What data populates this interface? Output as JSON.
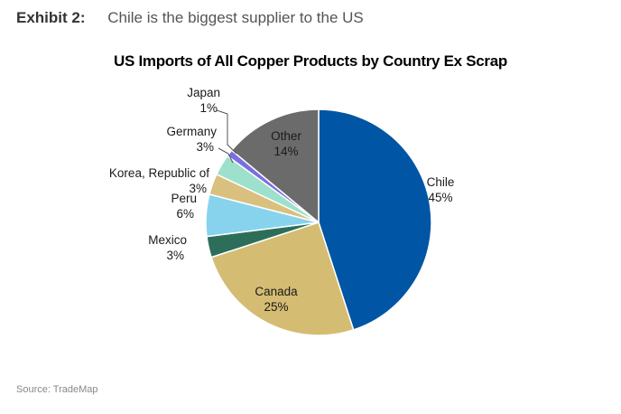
{
  "exhibit": {
    "label": "Exhibit 2:",
    "caption": "Chile is the biggest supplier to the US"
  },
  "source": "Source: TradeMap",
  "chart_data": {
    "type": "pie",
    "title": "US Imports of All Copper Products by Country Ex Scrap",
    "slices": [
      {
        "label": "Chile",
        "value": 45,
        "display": "45%",
        "color": "#0055A4"
      },
      {
        "label": "Canada",
        "value": 25,
        "display": "25%",
        "color": "#D4BC72"
      },
      {
        "label": "Mexico",
        "value": 3,
        "display": "3%",
        "color": "#2D6E5A"
      },
      {
        "label": "Peru",
        "value": 6,
        "display": "6%",
        "color": "#87D3EE"
      },
      {
        "label": "Korea, Republic of",
        "value": 3,
        "display": "3%",
        "color": "#DAC07E"
      },
      {
        "label": "Germany",
        "value": 3,
        "display": "3%",
        "color": "#9DE0CC"
      },
      {
        "label": "Japan",
        "value": 1,
        "display": "1%",
        "color": "#7A6FE0"
      },
      {
        "label": "Other",
        "value": 14,
        "display": "14%",
        "color": "#6B6B6B"
      }
    ]
  }
}
